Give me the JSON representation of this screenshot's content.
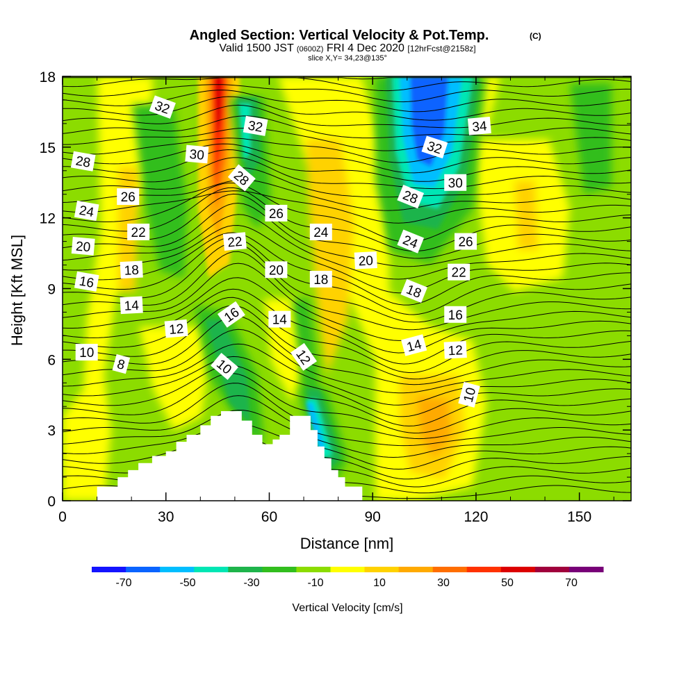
{
  "chart_data": {
    "type": "heatmap",
    "title": "Angled Section: Vertical Velocity & Pot.Temp.",
    "title_note": "(C)",
    "subtitle_parts": [
      "Valid 1500 JST",
      "(0600Z)",
      "FRI 4 Dec 2020",
      "[12hrFcst@2158z]"
    ],
    "slice_label": "slice X,Y= 34,23@135°",
    "xlabel": "Distance [nm]",
    "ylabel": "Height [Kft MSL]",
    "xlim": [
      0,
      165
    ],
    "ylim": [
      0,
      18
    ],
    "x_ticks": [
      0,
      30,
      60,
      90,
      120,
      150
    ],
    "y_ticks": [
      0,
      3,
      6,
      9,
      12,
      15,
      18
    ],
    "colorbar": {
      "title": "Vertical Velocity [cm/s]",
      "tick_labels": [
        "-70",
        "-50",
        "-30",
        "-10",
        "10",
        "30",
        "50",
        "70"
      ],
      "tick_values": [
        -70,
        -50,
        -30,
        -10,
        10,
        30,
        50,
        70
      ],
      "range": [
        -80,
        80
      ],
      "colors": [
        "#1414ff",
        "#0a64ff",
        "#00beff",
        "#00e6b4",
        "#1eb44b",
        "#32be1e",
        "#8cdc00",
        "#ffff00",
        "#ffd200",
        "#ffaa00",
        "#ff6e00",
        "#ff3200",
        "#dc0000",
        "#a0003c",
        "#780078"
      ]
    },
    "terrain": [
      [
        0,
        0
      ],
      [
        10,
        0
      ],
      [
        10,
        0.6
      ],
      [
        16,
        0.6
      ],
      [
        16,
        1
      ],
      [
        19,
        1
      ],
      [
        19,
        1.3
      ],
      [
        22,
        1.3
      ],
      [
        22,
        1.6
      ],
      [
        26,
        1.6
      ],
      [
        26,
        1.9
      ],
      [
        30,
        1.9
      ],
      [
        30,
        2.1
      ],
      [
        33,
        2.1
      ],
      [
        33,
        2.5
      ],
      [
        36,
        2.5
      ],
      [
        36,
        2.8
      ],
      [
        40,
        2.8
      ],
      [
        40,
        3.2
      ],
      [
        43,
        3.2
      ],
      [
        43,
        3.6
      ],
      [
        46,
        3.6
      ],
      [
        46,
        3.8
      ],
      [
        52,
        3.8
      ],
      [
        52,
        3.4
      ],
      [
        55,
        3.4
      ],
      [
        55,
        2.8
      ],
      [
        58,
        2.8
      ],
      [
        58,
        2.4
      ],
      [
        61,
        2.4
      ],
      [
        61,
        2.6
      ],
      [
        63,
        2.6
      ],
      [
        63,
        2.8
      ],
      [
        66,
        2.8
      ],
      [
        66,
        3.6
      ],
      [
        72,
        3.6
      ],
      [
        72,
        3
      ],
      [
        74,
        3
      ],
      [
        74,
        2.3
      ],
      [
        76,
        2.3
      ],
      [
        76,
        1.8
      ],
      [
        78,
        1.8
      ],
      [
        78,
        1.3
      ],
      [
        80,
        1.3
      ],
      [
        80,
        1
      ],
      [
        82,
        1
      ],
      [
        82,
        0.6
      ],
      [
        87,
        0.6
      ],
      [
        87,
        0
      ],
      [
        165,
        0
      ]
    ],
    "contour_labels": [
      {
        "text": "32",
        "x": 29,
        "y": 16.7,
        "rot": 20
      },
      {
        "text": "32",
        "x": 56,
        "y": 15.9,
        "rot": 10
      },
      {
        "text": "34",
        "x": 121,
        "y": 15.9,
        "rot": -5
      },
      {
        "text": "32",
        "x": 108,
        "y": 15,
        "rot": 18
      },
      {
        "text": "30",
        "x": 39,
        "y": 14.7,
        "rot": 5
      },
      {
        "text": "28",
        "x": 6,
        "y": 14.4,
        "rot": 10
      },
      {
        "text": "28",
        "x": 52,
        "y": 13.7,
        "rot": 40
      },
      {
        "text": "30",
        "x": 114,
        "y": 13.5,
        "rot": 0
      },
      {
        "text": "28",
        "x": 101,
        "y": 12.9,
        "rot": 22
      },
      {
        "text": "26",
        "x": 19,
        "y": 12.9,
        "rot": 0
      },
      {
        "text": "24",
        "x": 7,
        "y": 12.3,
        "rot": 10
      },
      {
        "text": "26",
        "x": 62,
        "y": 12.2,
        "rot": 0
      },
      {
        "text": "22",
        "x": 22,
        "y": 11.4,
        "rot": 0
      },
      {
        "text": "24",
        "x": 75,
        "y": 11.4,
        "rot": 0
      },
      {
        "text": "24",
        "x": 101,
        "y": 11,
        "rot": 22
      },
      {
        "text": "26",
        "x": 117,
        "y": 11,
        "rot": 0
      },
      {
        "text": "22",
        "x": 50,
        "y": 11,
        "rot": -5
      },
      {
        "text": "20",
        "x": 6,
        "y": 10.8,
        "rot": 5
      },
      {
        "text": "20",
        "x": 88,
        "y": 10.2,
        "rot": -3
      },
      {
        "text": "18",
        "x": 20,
        "y": 9.8,
        "rot": -3
      },
      {
        "text": "20",
        "x": 62,
        "y": 9.8,
        "rot": 0
      },
      {
        "text": "22",
        "x": 115,
        "y": 9.7,
        "rot": 0
      },
      {
        "text": "18",
        "x": 75,
        "y": 9.4,
        "rot": 0
      },
      {
        "text": "16",
        "x": 7,
        "y": 9.3,
        "rot": 10
      },
      {
        "text": "18",
        "x": 102,
        "y": 8.9,
        "rot": 22
      },
      {
        "text": "14",
        "x": 20,
        "y": 8.3,
        "rot": -3
      },
      {
        "text": "16",
        "x": 114,
        "y": 7.9,
        "rot": 0
      },
      {
        "text": "16",
        "x": 49,
        "y": 7.9,
        "rot": -35
      },
      {
        "text": "14",
        "x": 63,
        "y": 7.7,
        "rot": 0
      },
      {
        "text": "12",
        "x": 33,
        "y": 7.3,
        "rot": -5
      },
      {
        "text": "14",
        "x": 102,
        "y": 6.6,
        "rot": -15
      },
      {
        "text": "12",
        "x": 114,
        "y": 6.4,
        "rot": -3
      },
      {
        "text": "10",
        "x": 7,
        "y": 6.3,
        "rot": 0
      },
      {
        "text": "12",
        "x": 70,
        "y": 6.1,
        "rot": 55
      },
      {
        "text": "8",
        "x": 17,
        "y": 5.8,
        "rot": 15
      },
      {
        "text": "10",
        "x": 47,
        "y": 5.7,
        "rot": 40
      },
      {
        "text": "10",
        "x": 118,
        "y": 4.5,
        "rot": -75
      }
    ]
  }
}
